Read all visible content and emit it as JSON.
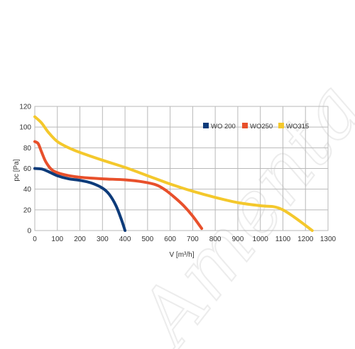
{
  "watermark": "Amenta",
  "chart_data": {
    "type": "line",
    "xlabel": "V [m³/h]",
    "ylabel": "pc [Pa]",
    "xlim": [
      0,
      1300
    ],
    "ylim": [
      0,
      120
    ],
    "xticks": [
      0,
      100,
      200,
      300,
      400,
      500,
      600,
      700,
      800,
      900,
      1000,
      1100,
      1200,
      1300
    ],
    "yticks": [
      0,
      20,
      40,
      60,
      80,
      100,
      120
    ],
    "grid": true,
    "legend_position": "top-right",
    "series": [
      {
        "name": "WO 200",
        "color": "#0d3b7a",
        "points": [
          [
            0,
            60
          ],
          [
            30,
            59.5
          ],
          [
            60,
            57
          ],
          [
            100,
            53
          ],
          [
            150,
            50
          ],
          [
            200,
            48.5
          ],
          [
            250,
            46
          ],
          [
            300,
            41
          ],
          [
            330,
            35
          ],
          [
            360,
            24
          ],
          [
            385,
            10
          ],
          [
            400,
            0
          ]
        ]
      },
      {
        "name": "WO250",
        "color": "#e8502b",
        "points": [
          [
            0,
            86
          ],
          [
            15,
            84
          ],
          [
            30,
            76
          ],
          [
            50,
            66
          ],
          [
            80,
            58
          ],
          [
            130,
            54
          ],
          [
            200,
            51.5
          ],
          [
            300,
            50
          ],
          [
            400,
            49
          ],
          [
            480,
            47
          ],
          [
            540,
            44
          ],
          [
            580,
            39
          ],
          [
            620,
            32
          ],
          [
            660,
            24
          ],
          [
            700,
            14
          ],
          [
            740,
            2
          ]
        ]
      },
      {
        "name": "WO315",
        "color": "#f4c82c",
        "points": [
          [
            0,
            110
          ],
          [
            30,
            104
          ],
          [
            60,
            95
          ],
          [
            100,
            86
          ],
          [
            150,
            80
          ],
          [
            200,
            75.5
          ],
          [
            300,
            68
          ],
          [
            400,
            61
          ],
          [
            500,
            53
          ],
          [
            600,
            45
          ],
          [
            700,
            38
          ],
          [
            800,
            32
          ],
          [
            900,
            27
          ],
          [
            1000,
            24
          ],
          [
            1060,
            23
          ],
          [
            1100,
            20
          ],
          [
            1150,
            13
          ],
          [
            1200,
            5
          ],
          [
            1230,
            0
          ]
        ]
      }
    ]
  }
}
